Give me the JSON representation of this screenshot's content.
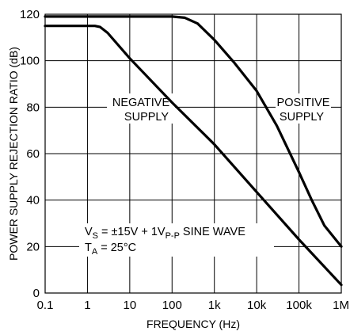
{
  "chart_data": {
    "type": "line",
    "title": "",
    "xlabel": "FREQUENCY (Hz)",
    "ylabel": "POWER SUPPLY REJECTION RATIO (dB)",
    "x_scale": "log",
    "xlim": [
      0.1,
      1000000
    ],
    "ylim": [
      0,
      120
    ],
    "x_ticks": [
      0.1,
      1,
      10,
      100,
      1000,
      10000,
      100000,
      1000000
    ],
    "x_tick_labels": [
      "0.1",
      "1",
      "10",
      "100",
      "1k",
      "10k",
      "100k",
      "1M"
    ],
    "y_ticks": [
      0,
      20,
      40,
      60,
      80,
      100,
      120
    ],
    "y_tick_labels": [
      "0",
      "20",
      "40",
      "60",
      "80",
      "100",
      "120"
    ],
    "grid": true,
    "series": [
      {
        "name": "POSITIVE SUPPLY",
        "x": [
          0.1,
          1,
          10,
          100,
          200,
          400,
          1000,
          3000,
          10000,
          30000,
          100000,
          200000,
          400000,
          1000000
        ],
        "y": [
          119,
          119,
          119,
          119,
          118.5,
          116,
          109,
          99,
          87,
          72,
          52,
          40,
          29,
          20
        ]
      },
      {
        "name": "NEGATIVE SUPPLY",
        "x": [
          0.1,
          1,
          1.5,
          2,
          3,
          10,
          100,
          1000,
          10000,
          100000,
          1000000
        ],
        "y": [
          115,
          115,
          115,
          114.5,
          112,
          101,
          82,
          64,
          43.5,
          23,
          3.5
        ]
      }
    ],
    "annotations": {
      "positive_label_line1": "POSITIVE",
      "positive_label_line2": "SUPPLY",
      "negative_label_line1": "NEGATIVE",
      "negative_label_line2": "SUPPLY",
      "vs_main": "V",
      "vs_sub": "S",
      "vs_mid": " = ±15V + 1V",
      "vs_sub2": "P-P",
      "vs_tail": " SINE WAVE",
      "ta_main": "T",
      "ta_sub": "A",
      "ta_tail": " = 25°C"
    }
  }
}
